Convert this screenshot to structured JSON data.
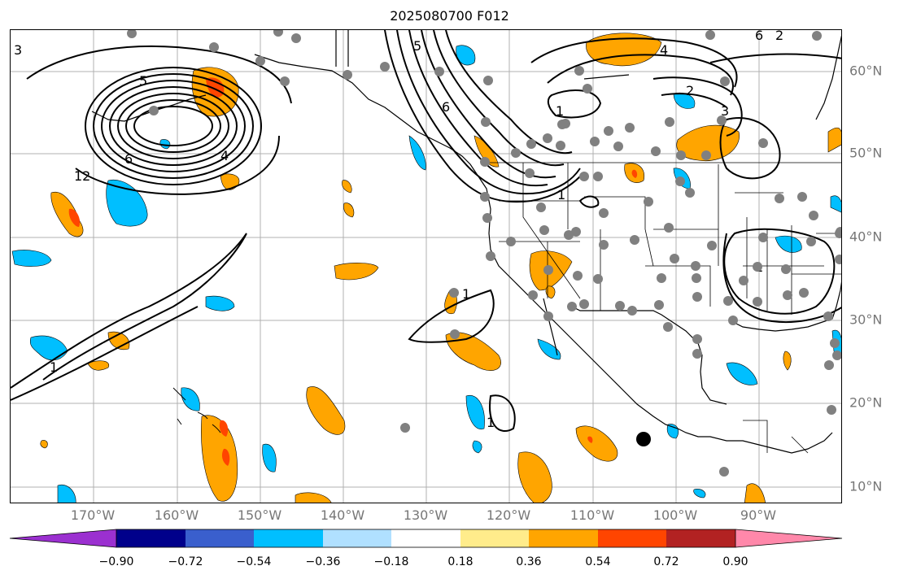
{
  "title": "2025080700 F012",
  "lon_labels": [
    "170°W",
    "160°W",
    "150°W",
    "140°W",
    "130°W",
    "120°W",
    "110°W",
    "100°W",
    "90°W"
  ],
  "lat_labels": [
    "60°N",
    "50°N",
    "40°N",
    "30°N",
    "20°N",
    "10°N"
  ],
  "colorbar": {
    "ticks": [
      "−0.90",
      "−0.72",
      "−0.54",
      "−0.36",
      "−0.18",
      "0.18",
      "0.36",
      "0.54",
      "0.72",
      "0.90"
    ],
    "colors": [
      "#9b30d0",
      "#00008b",
      "#3a5fcd",
      "#00bfff",
      "#b0e0ff",
      "#ffffff",
      "#ffec8b",
      "#ffa500",
      "#ff4500",
      "#b22222",
      "#ff88aa"
    ]
  },
  "contour_labels": [
    "3",
    "6",
    "5",
    "4",
    "12",
    "6",
    "5",
    "6",
    "2",
    "1",
    "4",
    "2",
    "3",
    "1",
    "1",
    "1",
    "1",
    "1"
  ],
  "colors": {
    "positive": "#ffa500",
    "positive_strong": "#ff4500",
    "negative": "#00bfff",
    "station": "#808080"
  }
}
